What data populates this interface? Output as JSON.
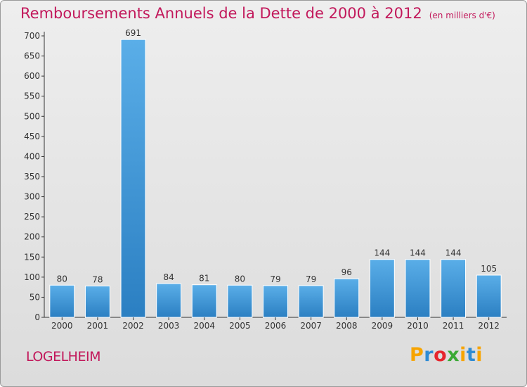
{
  "title": "Remboursements Annuels de la Dette de 2000 à 2012",
  "subtitle": "(en milliers d'€)",
  "commune": "LOGELHEIM",
  "brand": {
    "letters": [
      "P",
      "r",
      "o",
      "x",
      "i",
      "t",
      "i"
    ],
    "colors": [
      "#f7a400",
      "#2e8bd4",
      "#e6252d",
      "#3aa935",
      "#f7a400",
      "#2e8bd4",
      "#f7a400"
    ]
  },
  "chart_data": {
    "type": "bar",
    "categories": [
      "2000",
      "2001",
      "2002",
      "2003",
      "2004",
      "2005",
      "2006",
      "2007",
      "2008",
      "2009",
      "2010",
      "2011",
      "2012"
    ],
    "values": [
      80,
      78,
      691,
      84,
      81,
      80,
      79,
      79,
      96,
      144,
      144,
      144,
      105
    ],
    "data_labels": [
      "80",
      "78",
      "691",
      "84",
      "81",
      "80",
      "79",
      "79",
      "96",
      "144",
      "144",
      "144",
      "105"
    ],
    "ylim": [
      0,
      700
    ],
    "yticks": [
      0,
      50,
      100,
      150,
      200,
      250,
      300,
      350,
      400,
      450,
      500,
      550,
      600,
      650,
      700
    ],
    "grid": false,
    "bar_color_top": "#5aaee8",
    "bar_color_bottom": "#2b7fc2"
  }
}
